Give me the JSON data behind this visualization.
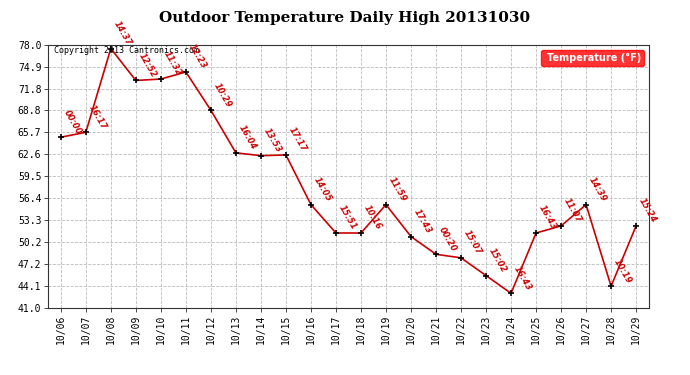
{
  "title": "Outdoor Temperature Daily High 20131030",
  "copyright": "Copyright 2013 Cantronics.com",
  "legend_label": "Temperature (°F)",
  "background_color": "#ffffff",
  "line_color": "#cc0000",
  "marker_color": "#000000",
  "dates": [
    "10/06",
    "10/07",
    "10/08",
    "10/09",
    "10/10",
    "10/11",
    "10/12",
    "10/13",
    "10/14",
    "10/15",
    "10/16",
    "10/17",
    "10/18",
    "10/19",
    "10/20",
    "10/21",
    "10/22",
    "10/23",
    "10/24",
    "10/25",
    "10/26",
    "10/27",
    "10/28",
    "10/29"
  ],
  "temperatures": [
    65.0,
    65.7,
    77.5,
    73.0,
    73.2,
    74.2,
    68.8,
    62.8,
    62.4,
    62.5,
    55.5,
    51.5,
    51.5,
    55.5,
    51.0,
    48.5,
    48.0,
    45.5,
    43.0,
    51.5,
    52.5,
    55.5,
    44.0,
    52.5
  ],
  "time_labels": [
    "00:00",
    "16:17",
    "14:37",
    "12:52",
    "11:32",
    "12:23",
    "10:29",
    "16:04",
    "13:53",
    "17:17",
    "14:05",
    "15:51",
    "10:16",
    "11:59",
    "17:43",
    "00:20",
    "15:07",
    "15:02",
    "16:43",
    "16:43",
    "11:07",
    "14:39",
    "10:19",
    "15:24"
  ],
  "ylim": [
    41.0,
    78.0
  ],
  "yticks": [
    41.0,
    44.1,
    47.2,
    50.2,
    53.3,
    56.4,
    59.5,
    62.6,
    65.7,
    68.8,
    71.8,
    74.9,
    78.0
  ],
  "title_fontsize": 11,
  "tick_fontsize": 7,
  "label_fontsize": 6,
  "copyright_fontsize": 6,
  "legend_fontsize": 7
}
